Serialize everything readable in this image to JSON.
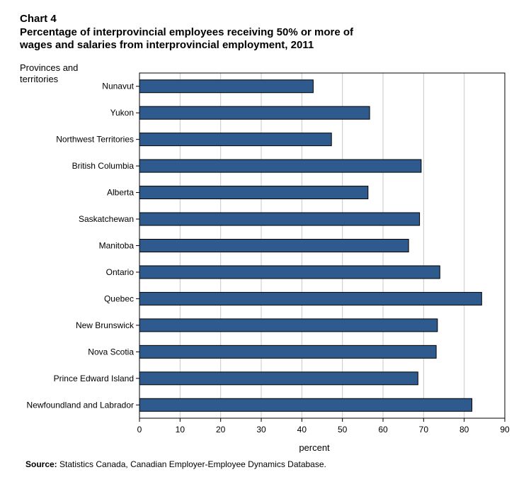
{
  "chart_data": {
    "type": "bar",
    "orientation": "horizontal",
    "chart_number": "Chart 4",
    "title_lines": [
      "Percentage of interprovincial employees receiving 50% or more of",
      "wages and salaries from interprovincial employment, 2011"
    ],
    "ylabel_lines": [
      "Provinces and",
      "territories"
    ],
    "xlabel": "percent",
    "xlim": [
      0,
      90
    ],
    "xticks": [
      0,
      10,
      20,
      30,
      40,
      50,
      60,
      70,
      80,
      90
    ],
    "grid": true,
    "categories": [
      "Nunavut",
      "Yukon",
      "Northwest Territories",
      "British Columbia",
      "Alberta",
      "Saskatchewan",
      "Manitoba",
      "Ontario",
      "Quebec",
      "New Brunswick",
      "Nova Scotia",
      "Prince Edward Island",
      "Newfoundland and Labrador"
    ],
    "values": [
      42.8,
      56.7,
      47.3,
      69.4,
      56.3,
      69.0,
      66.3,
      74.0,
      84.3,
      73.4,
      73.1,
      68.6,
      81.9
    ],
    "bar_color": "#2f5a8e"
  },
  "source": {
    "label": "Source:",
    "text": " Statistics Canada, Canadian Employer-Employee Dynamics Database."
  }
}
